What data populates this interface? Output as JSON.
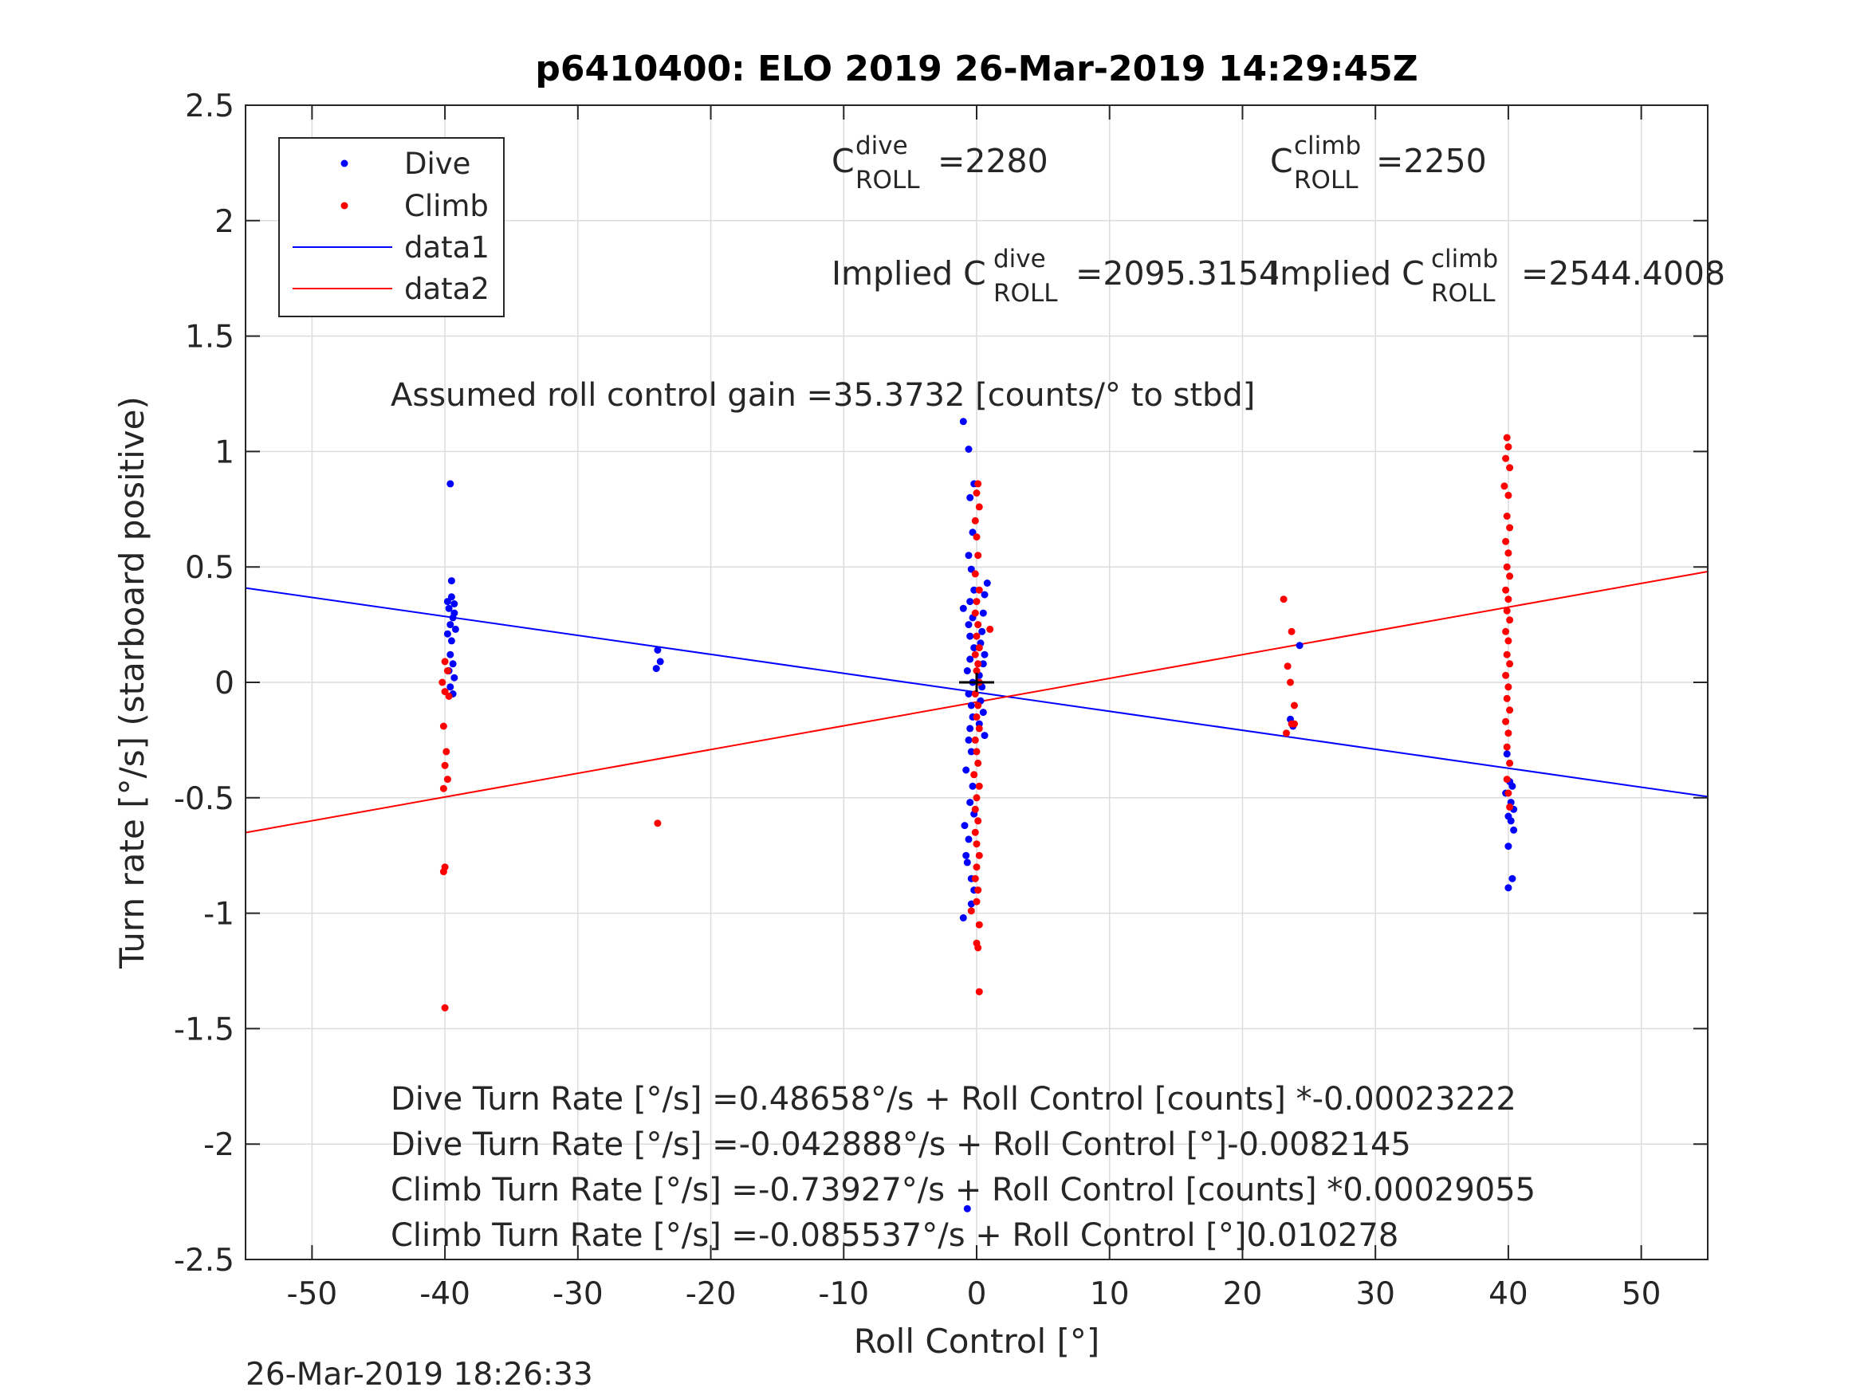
{
  "chart_data": {
    "type": "scatter",
    "title": "p6410400: ELO 2019 26-Mar-2019 14:29:45Z",
    "xlabel": "Roll Control [°]",
    "ylabel": "Turn rate [°/s] (starboard positive)",
    "xlim": [
      -55,
      55
    ],
    "ylim": [
      -2.5,
      2.5
    ],
    "grid": true,
    "legend_position": "top-left",
    "x_ticks": [
      "-50",
      "-40",
      "-30",
      "-20",
      "-10",
      "0",
      "10",
      "20",
      "30",
      "40",
      "50"
    ],
    "y_ticks": [
      "2.5",
      "2",
      "1.5",
      "1",
      "0.5",
      "0",
      "-0.5",
      "-1",
      "-1.5",
      "-2",
      "-2.5"
    ],
    "legend": [
      "Dive",
      "Climb",
      "data1",
      "data2"
    ],
    "colors": {
      "dive": "#0000ff",
      "climb": "#ff0000",
      "marker": "#000000"
    },
    "series": [
      {
        "name": "Dive",
        "kind": "points",
        "color": "#0000ff",
        "points": [
          [
            -39.6,
            0.86
          ],
          [
            -39.8,
            0.35
          ],
          [
            -39.5,
            0.37
          ],
          [
            -39.3,
            0.34
          ],
          [
            -39.7,
            0.32
          ],
          [
            -39.4,
            0.28
          ],
          [
            -39.6,
            0.25
          ],
          [
            -39.2,
            0.23
          ],
          [
            -39.8,
            0.21
          ],
          [
            -39.5,
            0.18
          ],
          [
            -39.6,
            0.12
          ],
          [
            -39.4,
            0.08
          ],
          [
            -39.7,
            0.05
          ],
          [
            -39.3,
            0.02
          ],
          [
            -39.6,
            -0.02
          ],
          [
            -39.4,
            -0.05
          ],
          [
            -39.5,
            0.44
          ],
          [
            -39.3,
            0.3
          ],
          [
            -24.0,
            0.14
          ],
          [
            -23.8,
            0.09
          ],
          [
            -24.1,
            0.06
          ],
          [
            -1.0,
            1.13
          ],
          [
            -0.6,
            1.01
          ],
          [
            -0.2,
            0.86
          ],
          [
            -0.5,
            0.8
          ],
          [
            -0.3,
            0.65
          ],
          [
            -0.6,
            0.55
          ],
          [
            -0.4,
            0.49
          ],
          [
            0.8,
            0.43
          ],
          [
            -0.2,
            0.4
          ],
          [
            0.6,
            0.38
          ],
          [
            -0.5,
            0.35
          ],
          [
            -1.0,
            0.32
          ],
          [
            0.5,
            0.3
          ],
          [
            -0.3,
            0.28
          ],
          [
            -0.6,
            0.25
          ],
          [
            0.4,
            0.22
          ],
          [
            -0.5,
            0.2
          ],
          [
            0.3,
            0.17
          ],
          [
            -0.2,
            0.15
          ],
          [
            0.6,
            0.12
          ],
          [
            -0.5,
            0.1
          ],
          [
            0.5,
            0.08
          ],
          [
            -0.7,
            0.05
          ],
          [
            0.2,
            0.03
          ],
          [
            -0.3,
            0.0
          ],
          [
            0.4,
            -0.02
          ],
          [
            -0.6,
            -0.05
          ],
          [
            0.3,
            -0.08
          ],
          [
            -0.4,
            -0.1
          ],
          [
            0.5,
            -0.13
          ],
          [
            -0.3,
            -0.15
          ],
          [
            0.2,
            -0.18
          ],
          [
            -0.5,
            -0.2
          ],
          [
            0.6,
            -0.23
          ],
          [
            -0.6,
            -0.25
          ],
          [
            -0.4,
            -0.3
          ],
          [
            -0.8,
            -0.38
          ],
          [
            -0.3,
            -0.45
          ],
          [
            -0.5,
            -0.52
          ],
          [
            -0.2,
            -0.57
          ],
          [
            -0.9,
            -0.62
          ],
          [
            -0.6,
            -0.68
          ],
          [
            -0.8,
            -0.75
          ],
          [
            -0.7,
            -0.78
          ],
          [
            -0.4,
            -0.85
          ],
          [
            -0.2,
            -0.9
          ],
          [
            -0.4,
            -0.96
          ],
          [
            -1.0,
            -1.02
          ],
          [
            -0.7,
            -2.28
          ],
          [
            23.6,
            -0.16
          ],
          [
            23.8,
            -0.19
          ],
          [
            24.3,
            0.16
          ],
          [
            39.9,
            -0.31
          ],
          [
            40.1,
            -0.43
          ],
          [
            40.3,
            -0.45
          ],
          [
            39.8,
            -0.48
          ],
          [
            40.2,
            -0.52
          ],
          [
            40.4,
            -0.55
          ],
          [
            40.0,
            -0.58
          ],
          [
            40.2,
            -0.6
          ],
          [
            40.4,
            -0.64
          ],
          [
            40.0,
            -0.71
          ],
          [
            40.3,
            -0.85
          ],
          [
            40.0,
            -0.89
          ]
        ]
      },
      {
        "name": "Climb",
        "kind": "points",
        "color": "#ff0000",
        "points": [
          [
            -40.0,
            0.09
          ],
          [
            -39.8,
            0.05
          ],
          [
            -40.2,
            0.0
          ],
          [
            -40.0,
            -0.04
          ],
          [
            -39.7,
            -0.06
          ],
          [
            -40.1,
            -0.19
          ],
          [
            -39.9,
            -0.3
          ],
          [
            -40.0,
            -0.36
          ],
          [
            -39.8,
            -0.42
          ],
          [
            -40.1,
            -0.46
          ],
          [
            -40.0,
            -0.8
          ],
          [
            -40.1,
            -0.82
          ],
          [
            -40.0,
            -1.41
          ],
          [
            -24.0,
            -0.61
          ],
          [
            0.1,
            0.86
          ],
          [
            0.0,
            0.82
          ],
          [
            0.2,
            0.76
          ],
          [
            -0.1,
            0.7
          ],
          [
            0.0,
            0.63
          ],
          [
            0.1,
            0.55
          ],
          [
            -0.1,
            0.47
          ],
          [
            0.2,
            0.4
          ],
          [
            0.0,
            0.35
          ],
          [
            -0.1,
            0.3
          ],
          [
            0.1,
            0.25
          ],
          [
            1.0,
            0.23
          ],
          [
            0.0,
            0.2
          ],
          [
            0.2,
            0.15
          ],
          [
            -0.1,
            0.12
          ],
          [
            0.1,
            0.08
          ],
          [
            0.0,
            0.05
          ],
          [
            0.2,
            0.0
          ],
          [
            -0.1,
            -0.05
          ],
          [
            0.1,
            -0.1
          ],
          [
            0.0,
            -0.15
          ],
          [
            0.2,
            -0.2
          ],
          [
            -0.1,
            -0.25
          ],
          [
            0.0,
            -0.3
          ],
          [
            0.1,
            -0.35
          ],
          [
            -0.2,
            -0.4
          ],
          [
            0.2,
            -0.45
          ],
          [
            0.0,
            -0.5
          ],
          [
            -0.1,
            -0.55
          ],
          [
            0.1,
            -0.6
          ],
          [
            -0.1,
            -0.65
          ],
          [
            0.0,
            -0.7
          ],
          [
            0.2,
            -0.75
          ],
          [
            0.0,
            -0.8
          ],
          [
            -0.1,
            -0.85
          ],
          [
            0.1,
            -0.9
          ],
          [
            0.0,
            -0.95
          ],
          [
            -0.4,
            -0.99
          ],
          [
            0.2,
            -1.05
          ],
          [
            0.0,
            -1.13
          ],
          [
            0.1,
            -1.15
          ],
          [
            0.2,
            -1.34
          ],
          [
            23.1,
            0.36
          ],
          [
            23.7,
            0.22
          ],
          [
            23.4,
            0.07
          ],
          [
            23.6,
            0.0
          ],
          [
            23.9,
            -0.1
          ],
          [
            23.7,
            -0.18
          ],
          [
            23.3,
            -0.22
          ],
          [
            23.9,
            -0.18
          ],
          [
            39.9,
            1.06
          ],
          [
            40.0,
            1.02
          ],
          [
            39.8,
            0.97
          ],
          [
            40.1,
            0.93
          ],
          [
            39.7,
            0.85
          ],
          [
            40.0,
            0.81
          ],
          [
            39.9,
            0.72
          ],
          [
            40.1,
            0.67
          ],
          [
            39.8,
            0.61
          ],
          [
            40.0,
            0.56
          ],
          [
            39.9,
            0.5
          ],
          [
            40.1,
            0.46
          ],
          [
            39.8,
            0.4
          ],
          [
            40.0,
            0.36
          ],
          [
            39.9,
            0.31
          ],
          [
            40.1,
            0.27
          ],
          [
            39.8,
            0.22
          ],
          [
            40.0,
            0.18
          ],
          [
            39.9,
            0.12
          ],
          [
            40.1,
            0.08
          ],
          [
            39.8,
            0.03
          ],
          [
            40.0,
            -0.02
          ],
          [
            39.9,
            -0.07
          ],
          [
            40.1,
            -0.12
          ],
          [
            39.8,
            -0.17
          ],
          [
            40.0,
            -0.22
          ],
          [
            39.9,
            -0.28
          ],
          [
            40.1,
            -0.35
          ],
          [
            39.9,
            -0.42
          ],
          [
            40.0,
            -0.48
          ],
          [
            40.1,
            -0.54
          ]
        ]
      },
      {
        "name": "data1",
        "kind": "line",
        "color": "#0000ff",
        "points": [
          [
            -55,
            0.409
          ],
          [
            55,
            -0.495
          ]
        ]
      },
      {
        "name": "data2",
        "kind": "line",
        "color": "#ff0000",
        "points": [
          [
            -55,
            -0.651
          ],
          [
            55,
            0.48
          ]
        ]
      }
    ],
    "center_marker": {
      "x": 0,
      "y": 0,
      "color": "#000000"
    },
    "annotations": {
      "c_dive_main": "C",
      "c_dive_sup": "dive",
      "c_dive_sub": "ROLL",
      "c_dive_val": " =2280",
      "c_climb_main": "C",
      "c_climb_sup": "climb",
      "c_climb_sub": "ROLL",
      "c_climb_val": " =2250",
      "impl_dive_main": "Implied C",
      "impl_dive_sup": "dive",
      "impl_dive_sub": "ROLL",
      "impl_dive_val": " =2095.3154",
      "impl_climb_main": "Implied C",
      "impl_climb_sup": "climb",
      "impl_climb_sub": "ROLL",
      "impl_climb_val": " =2544.4008",
      "gain": "Assumed roll control gain =35.3732 [counts/° to stbd]",
      "eq1": "Dive Turn Rate [°/s] =0.48658°/s + Roll Control [counts] *-0.00023222",
      "eq2": "Dive Turn Rate [°/s] =-0.042888°/s + Roll Control [°]-0.0082145",
      "eq3": "Climb Turn Rate [°/s] =-0.73927°/s + Roll Control [counts] *0.00029055",
      "eq4": "Climb Turn Rate [°/s] =-0.085537°/s + Roll Control [°]0.010278"
    },
    "timestamp": "26-Mar-2019 18:26:33"
  }
}
